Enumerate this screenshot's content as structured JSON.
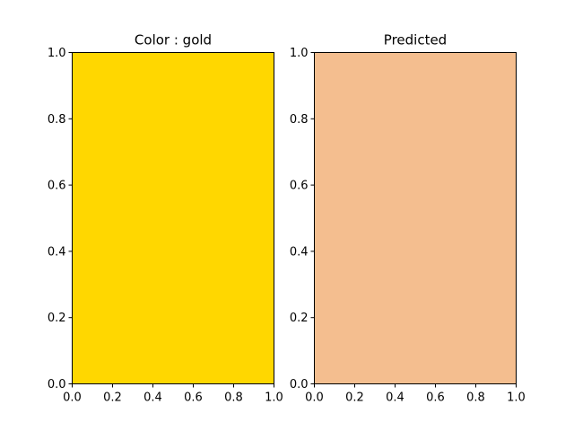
{
  "chart_data": [
    {
      "type": "heatmap",
      "title": "Color : gold",
      "fill_color": "#FFD700",
      "xlim": [
        0.0,
        1.0
      ],
      "ylim": [
        0.0,
        1.0
      ],
      "xticks": [
        "0.0",
        "0.2",
        "0.4",
        "0.6",
        "0.8",
        "1.0"
      ],
      "yticks": [
        "0.0",
        "0.2",
        "0.4",
        "0.6",
        "0.8",
        "1.0"
      ],
      "grid": false
    },
    {
      "type": "heatmap",
      "title": "Predicted",
      "fill_color": "#F4BE8F",
      "xlim": [
        0.0,
        1.0
      ],
      "ylim": [
        0.0,
        1.0
      ],
      "xticks": [
        "0.0",
        "0.2",
        "0.4",
        "0.6",
        "0.8",
        "1.0"
      ],
      "yticks": [
        "0.0",
        "0.2",
        "0.4",
        "0.6",
        "0.8",
        "1.0"
      ],
      "grid": false
    }
  ]
}
